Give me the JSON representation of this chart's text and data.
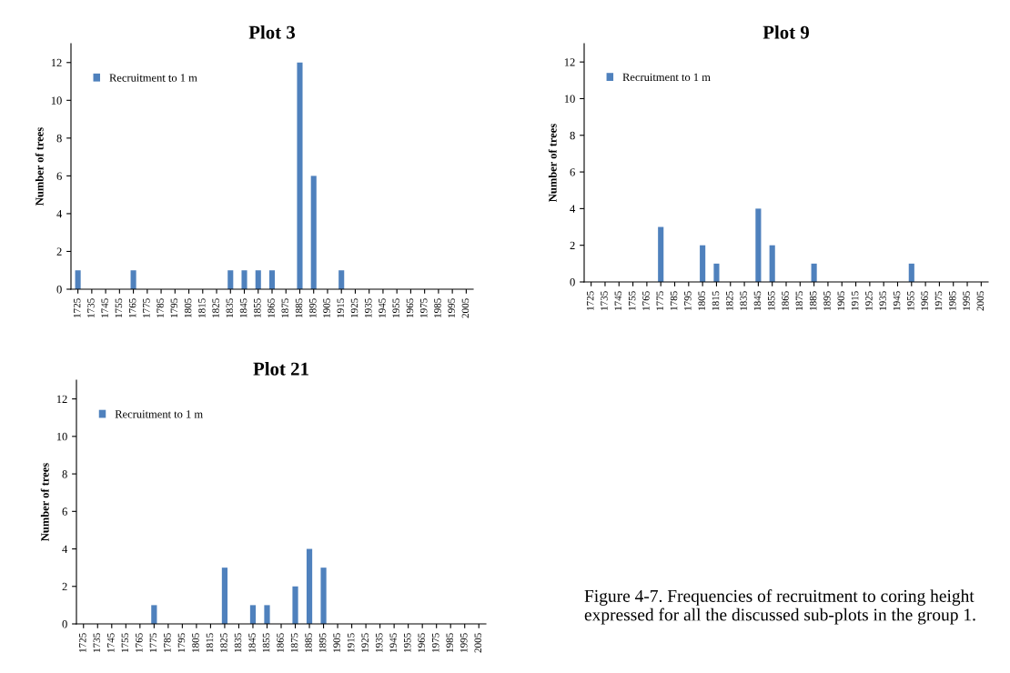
{
  "chart_data": [
    {
      "type": "bar",
      "title": "Plot 3",
      "ylabel": "Number of trees",
      "categories": [
        "1725",
        "1735",
        "1745",
        "1755",
        "1765",
        "1775",
        "1785",
        "1795",
        "1805",
        "1815",
        "1825",
        "1835",
        "1845",
        "1855",
        "1865",
        "1875",
        "1885",
        "1895",
        "1905",
        "1915",
        "1925",
        "1935",
        "1945",
        "1955",
        "1965",
        "1975",
        "1985",
        "1995",
        "2005"
      ],
      "series": [
        {
          "name": "Recruitment to 1 m",
          "color": "#4f81bd",
          "values": [
            1,
            0,
            0,
            0,
            1,
            0,
            0,
            0,
            0,
            0,
            0,
            1,
            1,
            1,
            1,
            0,
            12,
            6,
            0,
            1,
            0,
            0,
            0,
            0,
            0,
            0,
            0,
            0,
            0
          ]
        }
      ],
      "ylim": [
        0,
        13
      ],
      "yticks": [
        0,
        2,
        4,
        6,
        8,
        10,
        12
      ],
      "grid": false,
      "legend": "top left"
    },
    {
      "type": "bar",
      "title": "Plot 9",
      "ylabel": "Number of trees",
      "categories": [
        "1725",
        "1735",
        "1745",
        "1755",
        "1765",
        "1775",
        "1785",
        "1795",
        "1805",
        "1815",
        "1825",
        "1835",
        "1845",
        "1855",
        "1865",
        "1875",
        "1885",
        "1895",
        "1905",
        "1915",
        "1925",
        "1935",
        "1945",
        "1955",
        "1965",
        "1975",
        "1985",
        "1995",
        "2005"
      ],
      "series": [
        {
          "name": "Recruitment to 1 m",
          "color": "#4f81bd",
          "values": [
            0,
            0,
            0,
            0,
            0,
            3,
            0,
            0,
            2,
            1,
            0,
            0,
            4,
            2,
            0,
            0,
            1,
            0,
            0,
            0,
            0,
            0,
            0,
            1,
            0,
            0,
            0,
            0,
            0
          ]
        }
      ],
      "ylim": [
        0,
        13
      ],
      "yticks": [
        0,
        2,
        4,
        6,
        8,
        10,
        12
      ],
      "grid": false,
      "legend": "top left"
    },
    {
      "type": "bar",
      "title": "Plot 21",
      "ylabel": "Number of trees",
      "categories": [
        "1725",
        "1735",
        "1745",
        "1755",
        "1765",
        "1775",
        "1785",
        "1795",
        "1805",
        "1815",
        "1825",
        "1835",
        "1845",
        "1855",
        "1865",
        "1875",
        "1885",
        "1895",
        "1905",
        "1915",
        "1925",
        "1935",
        "1945",
        "1955",
        "1965",
        "1975",
        "1985",
        "1995",
        "2005"
      ],
      "series": [
        {
          "name": "Recruitment to 1 m",
          "color": "#4f81bd",
          "values": [
            0,
            0,
            0,
            0,
            0,
            1,
            0,
            0,
            0,
            0,
            3,
            0,
            1,
            1,
            0,
            2,
            4,
            3,
            0,
            0,
            0,
            0,
            0,
            0,
            0,
            0,
            0,
            0,
            0
          ]
        }
      ],
      "ylim": [
        0,
        13
      ],
      "yticks": [
        0,
        2,
        4,
        6,
        8,
        10,
        12
      ],
      "grid": false,
      "legend": "top left",
      "annotations": [
        "Figure 4-7. Frequencies of recruitment to coring height expressed for all the discussed sub-plots in the group 1."
      ]
    }
  ]
}
